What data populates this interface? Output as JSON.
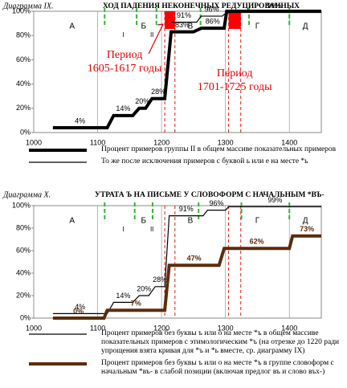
{
  "chart_data": [
    {
      "type": "line",
      "label": "Диаграмма IX.",
      "title": "ХОД ПАДЕНИЯ НЕКОНЕЧНЫХ РЕДУЦИРОВАННЫХ",
      "xlim": [
        1000,
        1450
      ],
      "xticks": [
        1000,
        1100,
        1200,
        1300,
        1400
      ],
      "ylim": [
        0,
        100
      ],
      "yticks": [
        {
          "value": 0,
          "label": "0%"
        },
        {
          "value": 20,
          "label": "20%"
        },
        {
          "value": 40,
          "label": "40%"
        },
        {
          "value": 60,
          "label": "60%"
        },
        {
          "value": 80,
          "label": "80%"
        },
        {
          "value": 100,
          "label": "100%"
        }
      ],
      "grid": "x",
      "phases": [
        {
          "label": "А",
          "x": 1060
        },
        {
          "label": "I",
          "x": 1140
        },
        {
          "label": "Б",
          "x": 1172
        },
        {
          "label": "II",
          "x": 1185
        },
        {
          "label": "В",
          "x": 1245
        },
        {
          "label": "Г",
          "x": 1350
        },
        {
          "label": "Д",
          "x": 1425
        }
      ],
      "phase_bounds": [
        1111,
        1161,
        1192,
        1261,
        1337,
        1400
      ],
      "period_fill": "#ff0000",
      "periods": [
        {
          "label": [
            "Период",
            "1605-1617 годы"
          ],
          "x": [
            1205,
            1221
          ]
        },
        {
          "label": [
            "Период",
            "1701-1725 годы"
          ],
          "x": [
            1305,
            1324
          ]
        }
      ],
      "series": [
        {
          "name": "Процент примеров группы II в общем массиве показательных примеров",
          "color": "#000000",
          "width": 4,
          "x": [
            1030,
            1115,
            1125,
            1155,
            1165,
            1175,
            1185,
            1205,
            1215,
            1250,
            1262,
            1298,
            1302,
            1450
          ],
          "values": [
            4,
            4,
            14,
            14,
            20,
            20,
            28,
            28,
            83,
            83,
            86,
            86,
            100,
            100
          ],
          "value_labels": [
            "4%",
            null,
            "14%",
            null,
            "20%",
            null,
            "28%",
            null,
            "83%",
            null,
            "86%",
            null,
            null,
            null
          ]
        },
        {
          "name": "То же после исключения примеров с буквой ь или е на месте *ь",
          "color": "#000000",
          "width": 1.2,
          "x": [
            1215,
            1255,
            1262,
            1295,
            1302,
            1450
          ],
          "values": [
            91,
            91,
            96,
            96,
            99,
            99
          ],
          "value_labels": [
            "91%",
            null,
            "96%",
            null,
            "99%",
            null
          ]
        }
      ]
    },
    {
      "type": "line",
      "label": "Диаграмма X.",
      "title": "УТРАТА Ъ НА ПИСЬМЕ У СЛОВОФОРМ С НАЧАЛЬНЫМ *ВЪ-",
      "xlim": [
        1000,
        1450
      ],
      "xticks": [
        1000,
        1100,
        1200,
        1300,
        1400
      ],
      "ylim": [
        0,
        100
      ],
      "yticks": [
        {
          "value": 0,
          "label": "0%"
        },
        {
          "value": 20,
          "label": "20%"
        },
        {
          "value": 40,
          "label": "40%"
        },
        {
          "value": 60,
          "label": "60%"
        },
        {
          "value": 80,
          "label": "80%"
        },
        {
          "value": 100,
          "label": "100%"
        }
      ],
      "grid": "x",
      "phases": [
        {
          "label": "А",
          "x": 1060
        },
        {
          "label": "I",
          "x": 1140
        },
        {
          "label": "Б",
          "x": 1172
        },
        {
          "label": "II",
          "x": 1185
        },
        {
          "label": "В",
          "x": 1245
        },
        {
          "label": "Г",
          "x": 1350
        },
        {
          "label": "Д",
          "x": 1425
        }
      ],
      "phase_bounds": [
        1111,
        1158,
        1186,
        1258,
        1325,
        1400
      ],
      "periods": [
        {
          "x": [
            1205,
            1221
          ]
        },
        {
          "x": [
            1305,
            1324
          ]
        }
      ],
      "series": [
        {
          "name": "Процент примеров без буквы ъ или ο на месте *ъ в общем массиве показательных примеров с этимологическим *ъ (на отрезке до 1220 ради упрощения взята кривая для *ъ и *ь вместе, ср. диаграмму IX)",
          "color": "#000000",
          "width": 1.2,
          "x": [
            1030,
            1115,
            1125,
            1155,
            1165,
            1180,
            1190,
            1205,
            1212,
            1265,
            1272,
            1300,
            1305,
            1450
          ],
          "values": [
            4,
            4,
            14,
            14,
            20,
            20,
            28,
            28,
            91,
            91,
            96,
            96,
            99,
            99
          ],
          "value_labels": [
            "4%",
            null,
            "14%",
            null,
            "20%",
            null,
            "28%",
            null,
            "91%",
            null,
            "96%",
            null,
            "99%",
            null
          ]
        },
        {
          "name": "Процент примеров без буквы ъ или ο на месте *ъ в группе словоформ с начальным *въ- в слабой позиции (включая предлог въ и слово въх-)",
          "color": "#5a2d0c",
          "width": 4,
          "x": [
            1030,
            1110,
            1115,
            1205,
            1212,
            1290,
            1298,
            1400,
            1405,
            1450
          ],
          "values": [
            0,
            0,
            7,
            7,
            47,
            47,
            62,
            62,
            73,
            73
          ],
          "value_labels": [
            "0%",
            null,
            "7%",
            null,
            "47%",
            null,
            "62%",
            null,
            "73%",
            null
          ]
        }
      ]
    }
  ]
}
